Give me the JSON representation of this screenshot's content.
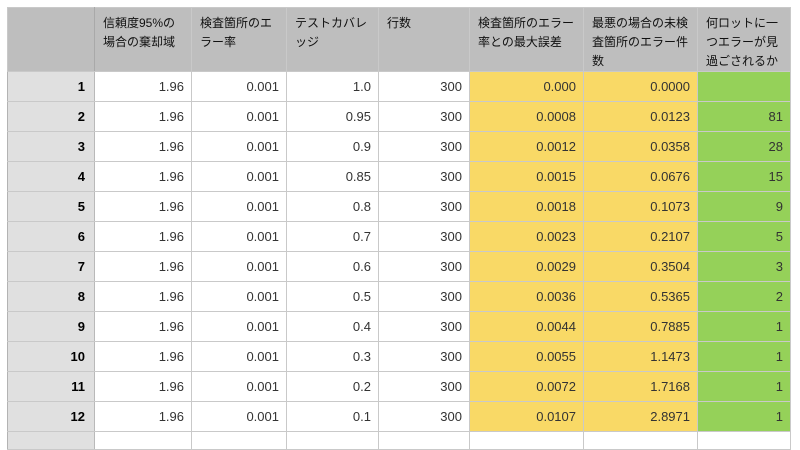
{
  "app": {
    "kind": "spreadsheet-table",
    "colors": {
      "header_background": "#bebebe",
      "row_header_background": "#e0e0e0",
      "highlight_yellow": "#f9d966",
      "highlight_green": "#95d159",
      "grid_line": "#c9c9c9",
      "header_divider": "#868686"
    }
  },
  "table": {
    "corner_label": "",
    "columns": [
      {
        "label": "信頼度95%の場合の棄却域",
        "fill": "none"
      },
      {
        "label": "検査箇所のエラー率",
        "fill": "none"
      },
      {
        "label": "テストカバレッジ",
        "fill": "none"
      },
      {
        "label": "行数",
        "fill": "none"
      },
      {
        "label": "検査箇所のエラー率との最大誤差",
        "fill": "yellow"
      },
      {
        "label": "最悪の場合の未検査箇所のエラー件数",
        "fill": "yellow"
      },
      {
        "label": "何ロットに一つエラーが見過ごされるか",
        "fill": "green"
      }
    ],
    "rows": [
      {
        "num": "1",
        "cells": [
          "1.96",
          "0.001",
          "1.0",
          "300",
          "0.000",
          "0.0000",
          ""
        ]
      },
      {
        "num": "2",
        "cells": [
          "1.96",
          "0.001",
          "0.95",
          "300",
          "0.0008",
          "0.0123",
          "81"
        ]
      },
      {
        "num": "3",
        "cells": [
          "1.96",
          "0.001",
          "0.9",
          "300",
          "0.0012",
          "0.0358",
          "28"
        ]
      },
      {
        "num": "4",
        "cells": [
          "1.96",
          "0.001",
          "0.85",
          "300",
          "0.0015",
          "0.0676",
          "15"
        ]
      },
      {
        "num": "5",
        "cells": [
          "1.96",
          "0.001",
          "0.8",
          "300",
          "0.0018",
          "0.1073",
          "9"
        ]
      },
      {
        "num": "6",
        "cells": [
          "1.96",
          "0.001",
          "0.7",
          "300",
          "0.0023",
          "0.2107",
          "5"
        ]
      },
      {
        "num": "7",
        "cells": [
          "1.96",
          "0.001",
          "0.6",
          "300",
          "0.0029",
          "0.3504",
          "3"
        ]
      },
      {
        "num": "8",
        "cells": [
          "1.96",
          "0.001",
          "0.5",
          "300",
          "0.0036",
          "0.5365",
          "2"
        ]
      },
      {
        "num": "9",
        "cells": [
          "1.96",
          "0.001",
          "0.4",
          "300",
          "0.0044",
          "0.7885",
          "1"
        ]
      },
      {
        "num": "10",
        "cells": [
          "1.96",
          "0.001",
          "0.3",
          "300",
          "0.0055",
          "1.1473",
          "1"
        ]
      },
      {
        "num": "11",
        "cells": [
          "1.96",
          "0.001",
          "0.2",
          "300",
          "0.0072",
          "1.7168",
          "1"
        ]
      },
      {
        "num": "12",
        "cells": [
          "1.96",
          "0.001",
          "0.1",
          "300",
          "0.0107",
          "2.8971",
          "1"
        ]
      }
    ],
    "trailing_empty_row": {
      "num": "",
      "cells": [
        "",
        "",
        "",
        "",
        "",
        "",
        ""
      ]
    }
  }
}
